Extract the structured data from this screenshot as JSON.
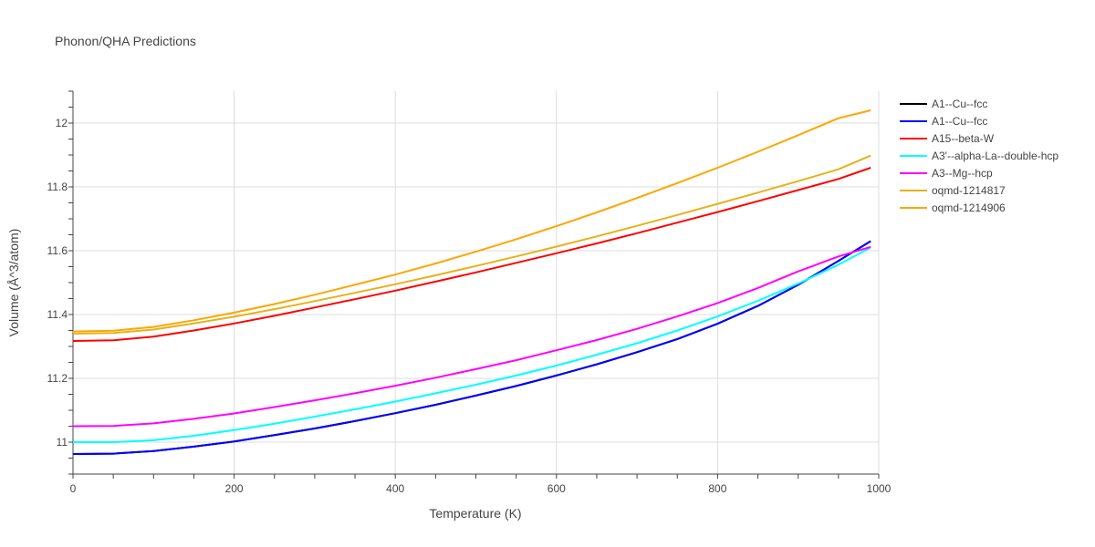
{
  "chart_data": {
    "type": "line",
    "title": "Phonon/QHA Predictions",
    "xlabel": "Temperature (K)",
    "ylabel": "Volume (Å^3/atom)",
    "xlim": [
      0,
      1000
    ],
    "ylim": [
      10.9,
      12.1
    ],
    "xticks": [
      0,
      200,
      400,
      600,
      800,
      1000
    ],
    "yticks": [
      11,
      11.2,
      11.4,
      11.6,
      11.8,
      12
    ],
    "grid": true,
    "legend_position": "right",
    "series": [
      {
        "name": "A1--Cu--fcc",
        "color": "#000000",
        "x": [
          0,
          50,
          100,
          150,
          200,
          250,
          300,
          350,
          400,
          450,
          500,
          550,
          600,
          650,
          700,
          750,
          800,
          850,
          900,
          950,
          990
        ],
        "y": [
          10.963,
          10.964,
          10.972,
          10.986,
          11.002,
          11.022,
          11.043,
          11.066,
          11.091,
          11.117,
          11.146,
          11.176,
          11.209,
          11.244,
          11.282,
          11.323,
          11.371,
          11.427,
          11.493,
          11.568,
          11.63
        ]
      },
      {
        "name": "A1--Cu--fcc",
        "color": "#0000ff",
        "x": [
          0,
          50,
          100,
          150,
          200,
          250,
          300,
          350,
          400,
          450,
          500,
          550,
          600,
          650,
          700,
          750,
          800,
          850,
          900,
          950,
          990
        ],
        "y": [
          10.963,
          10.964,
          10.972,
          10.986,
          11.002,
          11.022,
          11.043,
          11.066,
          11.091,
          11.117,
          11.146,
          11.176,
          11.209,
          11.244,
          11.282,
          11.323,
          11.371,
          11.427,
          11.493,
          11.568,
          11.63
        ]
      },
      {
        "name": "A15--beta-W",
        "color": "#ff0000",
        "x": [
          0,
          50,
          100,
          150,
          200,
          250,
          300,
          350,
          400,
          450,
          500,
          550,
          600,
          650,
          700,
          750,
          800,
          850,
          900,
          950,
          990
        ],
        "y": [
          11.317,
          11.319,
          11.331,
          11.35,
          11.372,
          11.396,
          11.422,
          11.448,
          11.475,
          11.503,
          11.532,
          11.562,
          11.592,
          11.623,
          11.655,
          11.688,
          11.721,
          11.755,
          11.79,
          11.825,
          11.86
        ]
      },
      {
        "name": "A3'--alpha-La--double-hcp",
        "color": "#00ffff",
        "x": [
          0,
          50,
          100,
          150,
          200,
          250,
          300,
          350,
          400,
          450,
          500,
          550,
          600,
          650,
          700,
          750,
          800,
          850,
          900,
          950,
          990
        ],
        "y": [
          11.0,
          11.0,
          11.006,
          11.02,
          11.038,
          11.058,
          11.08,
          11.103,
          11.127,
          11.153,
          11.18,
          11.209,
          11.24,
          11.274,
          11.31,
          11.35,
          11.394,
          11.443,
          11.497,
          11.556,
          11.61
        ]
      },
      {
        "name": "A3--Mg--hcp",
        "color": "#ff00ff",
        "x": [
          0,
          50,
          100,
          150,
          200,
          250,
          300,
          350,
          400,
          450,
          500,
          550,
          600,
          650,
          700,
          750,
          800,
          850,
          900,
          950,
          990
        ],
        "y": [
          11.05,
          11.051,
          11.059,
          11.073,
          11.09,
          11.11,
          11.131,
          11.153,
          11.177,
          11.202,
          11.229,
          11.257,
          11.288,
          11.32,
          11.355,
          11.394,
          11.436,
          11.483,
          11.535,
          11.582,
          11.612
        ]
      },
      {
        "name": "oqmd-1214817",
        "color": "#e6b21a",
        "x": [
          0,
          50,
          100,
          150,
          200,
          250,
          300,
          350,
          400,
          450,
          500,
          550,
          600,
          650,
          700,
          750,
          800,
          850,
          900,
          950,
          990
        ],
        "y": [
          11.34,
          11.342,
          11.353,
          11.372,
          11.393,
          11.417,
          11.442,
          11.468,
          11.495,
          11.523,
          11.552,
          11.582,
          11.613,
          11.645,
          11.678,
          11.712,
          11.747,
          11.782,
          11.818,
          11.855,
          11.898
        ]
      },
      {
        "name": "oqmd-1214906",
        "color": "#ffa500",
        "x": [
          0,
          50,
          100,
          150,
          200,
          250,
          300,
          350,
          400,
          450,
          500,
          550,
          600,
          650,
          700,
          750,
          800,
          850,
          900,
          950,
          990
        ],
        "y": [
          11.347,
          11.349,
          11.361,
          11.382,
          11.406,
          11.433,
          11.462,
          11.493,
          11.525,
          11.56,
          11.597,
          11.636,
          11.677,
          11.72,
          11.765,
          11.812,
          11.86,
          11.91,
          11.962,
          12.015,
          12.04
        ]
      }
    ]
  }
}
